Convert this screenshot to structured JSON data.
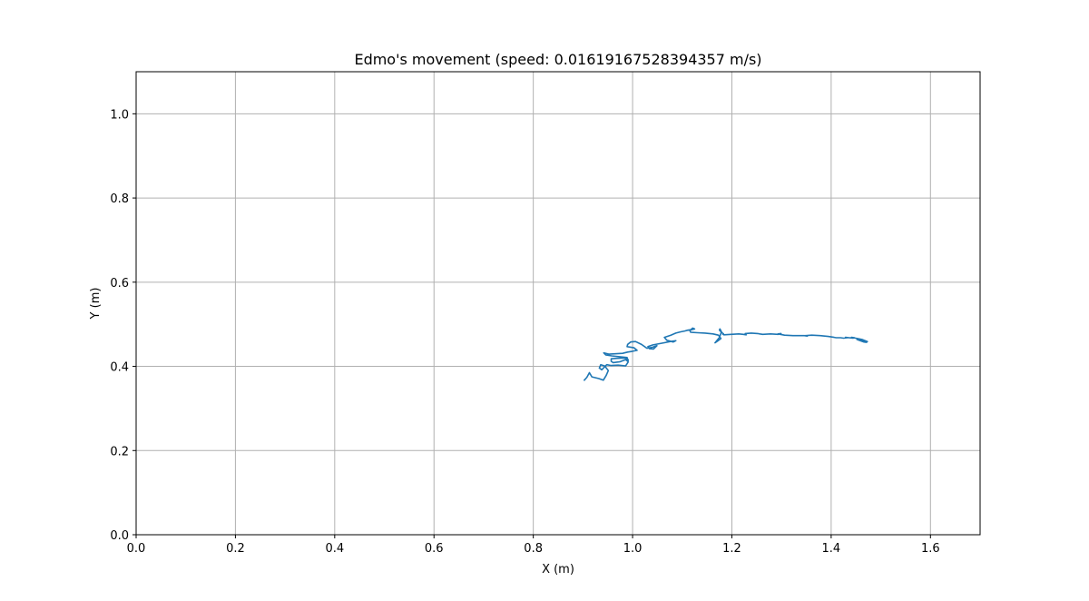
{
  "chart_data": {
    "type": "line",
    "title": "Edmo's movement (speed: 0.01619167528394357 m/s)",
    "xlabel": "X (m)",
    "ylabel": "Y (m)",
    "xlim": [
      0.0,
      1.7
    ],
    "ylim": [
      0.0,
      1.1
    ],
    "xticks": [
      "0.0",
      "0.2",
      "0.4",
      "0.6",
      "0.8",
      "1.0",
      "1.2",
      "1.4",
      "1.6"
    ],
    "xtick_values": [
      0.0,
      0.2,
      0.4,
      0.6,
      0.8,
      1.0,
      1.2,
      1.4,
      1.6
    ],
    "yticks": [
      "0.0",
      "0.2",
      "0.4",
      "0.6",
      "0.8",
      "1.0"
    ],
    "ytick_values": [
      0.0,
      0.2,
      0.4,
      0.6,
      0.8,
      1.0
    ],
    "grid": true,
    "series": [
      {
        "color": "#1f77b4",
        "x": [
          0.902,
          0.908,
          0.913,
          0.918,
          0.932,
          0.941,
          0.947,
          0.951,
          0.944,
          0.936,
          0.933,
          0.938,
          0.948,
          0.957,
          0.971,
          0.986,
          0.991,
          0.991,
          0.986,
          0.968,
          0.957,
          0.957,
          0.961,
          0.975,
          0.986,
          0.991,
          0.989,
          0.958,
          0.946,
          0.942,
          0.953,
          0.98,
          0.99,
          1.0,
          1.009,
          1.003,
          0.989,
          0.99,
          0.996,
          1.006,
          1.018,
          1.029,
          1.039,
          1.046,
          1.049,
          1.042,
          1.034,
          1.031,
          1.041,
          1.063,
          1.076,
          1.087,
          1.082,
          1.069,
          1.064,
          1.077,
          1.087,
          1.097,
          1.105,
          1.111,
          1.117,
          1.121,
          1.125,
          1.115,
          1.117,
          1.131,
          1.146,
          1.162,
          1.173,
          1.178,
          1.172,
          1.166,
          1.175,
          1.179,
          1.176,
          1.175,
          1.179,
          1.183,
          1.182,
          1.184,
          1.198,
          1.214,
          1.223,
          1.229,
          1.227,
          1.239,
          1.252,
          1.256,
          1.262,
          1.278,
          1.293,
          1.299,
          1.293,
          1.306,
          1.323,
          1.338,
          1.346,
          1.352,
          1.348,
          1.361,
          1.378,
          1.394,
          1.406,
          1.41,
          1.419,
          1.425,
          1.433,
          1.429,
          1.444,
          1.447,
          1.441,
          1.453,
          1.462,
          1.466,
          1.473,
          1.471,
          1.466,
          1.456,
          1.452,
          1.463,
          1.468
        ],
        "y": [
          0.366,
          0.374,
          0.385,
          0.375,
          0.371,
          0.367,
          0.379,
          0.39,
          0.401,
          0.404,
          0.396,
          0.392,
          0.404,
          0.402,
          0.403,
          0.401,
          0.41,
          0.416,
          0.42,
          0.419,
          0.418,
          0.412,
          0.409,
          0.411,
          0.416,
          0.411,
          0.421,
          0.425,
          0.427,
          0.432,
          0.429,
          0.431,
          0.434,
          0.436,
          0.438,
          0.444,
          0.447,
          0.452,
          0.458,
          0.459,
          0.452,
          0.443,
          0.445,
          0.448,
          0.449,
          0.441,
          0.442,
          0.447,
          0.451,
          0.456,
          0.459,
          0.461,
          0.458,
          0.462,
          0.469,
          0.474,
          0.479,
          0.482,
          0.484,
          0.486,
          0.487,
          0.491,
          0.489,
          0.486,
          0.481,
          0.48,
          0.479,
          0.477,
          0.474,
          0.466,
          0.461,
          0.456,
          0.469,
          0.482,
          0.489,
          0.486,
          0.481,
          0.477,
          0.476,
          0.475,
          0.476,
          0.477,
          0.476,
          0.475,
          0.478,
          0.479,
          0.478,
          0.477,
          0.476,
          0.477,
          0.476,
          0.478,
          0.477,
          0.474,
          0.473,
          0.473,
          0.473,
          0.472,
          0.473,
          0.474,
          0.473,
          0.471,
          0.469,
          0.468,
          0.468,
          0.467,
          0.468,
          0.469,
          0.467,
          0.468,
          0.469,
          0.466,
          0.464,
          0.462,
          0.459,
          0.457,
          0.458,
          0.462,
          0.464,
          0.462,
          0.459
        ]
      }
    ]
  }
}
